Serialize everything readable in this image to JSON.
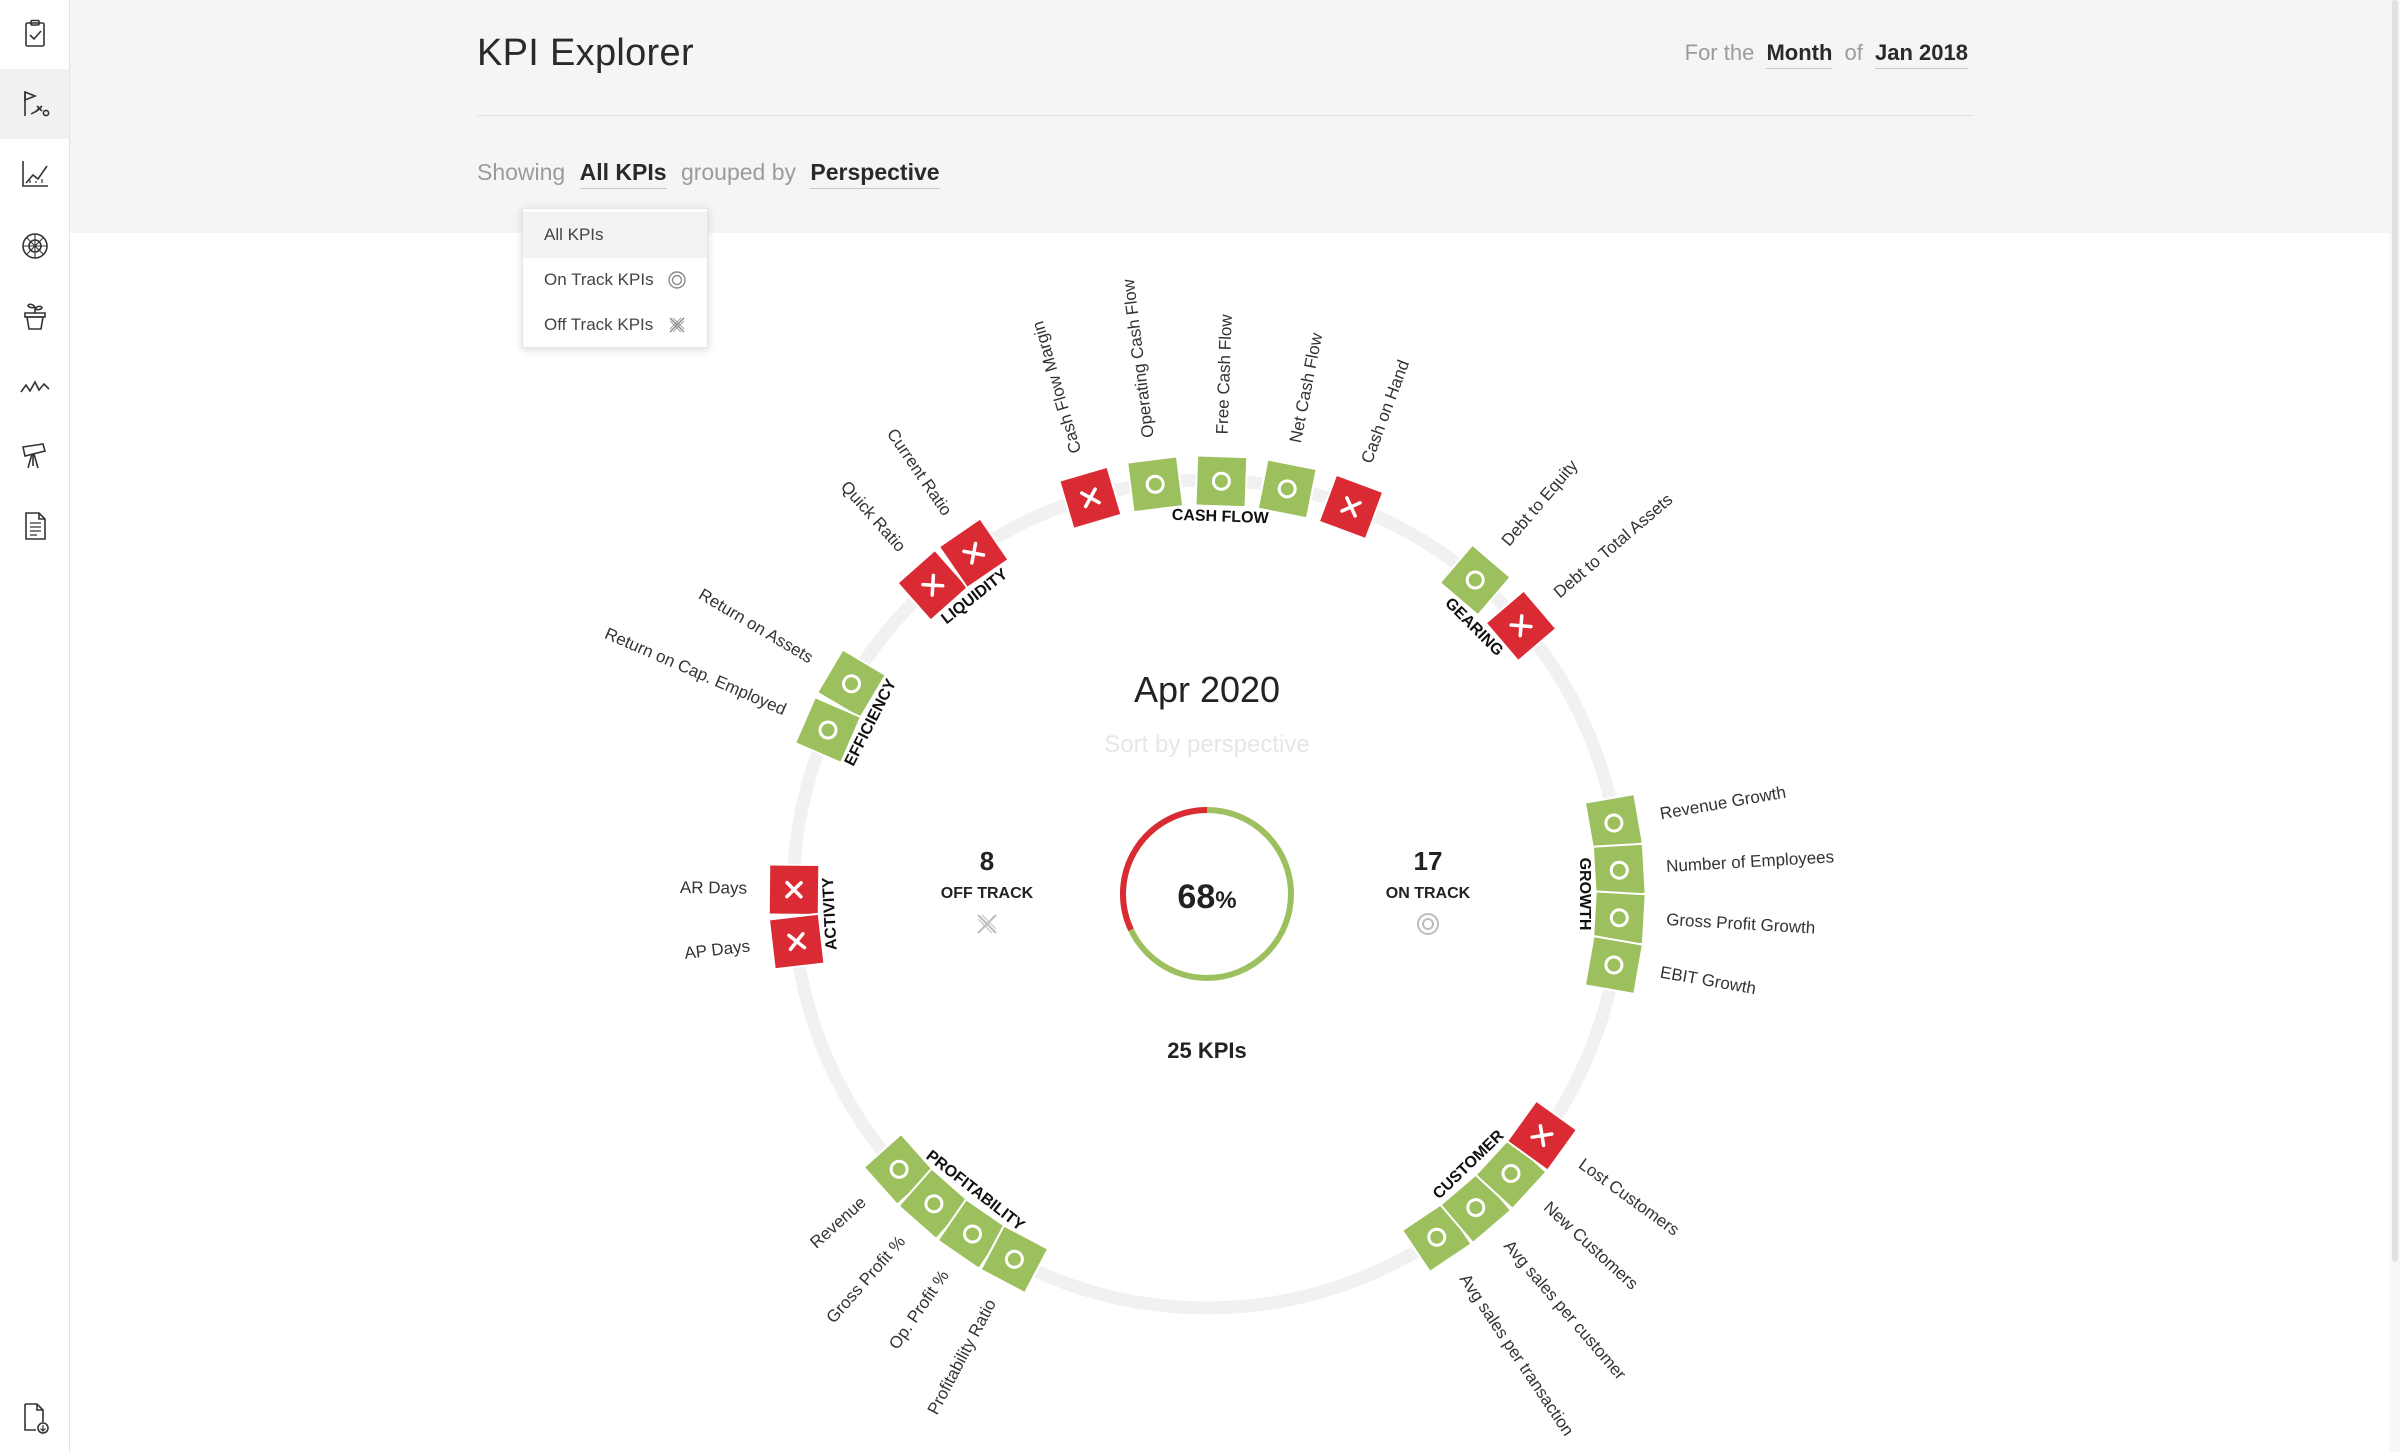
{
  "app": {
    "title": "KPI Explorer"
  },
  "period": {
    "prefix": "For the",
    "period_type": "Month",
    "of_label": "of",
    "date": "Jan 2018"
  },
  "filters": {
    "showing_label": "Showing",
    "kpi_filter": "All KPIs",
    "grouped_by_label": "grouped by",
    "group": "Perspective"
  },
  "dropdown": {
    "options": [
      {
        "label": "All KPIs",
        "icon": "",
        "selected": true
      },
      {
        "label": "On Track KPIs",
        "icon": "on-track-icon",
        "selected": false
      },
      {
        "label": "Off Track KPIs",
        "icon": "off-track-icon",
        "selected": false
      }
    ]
  },
  "summary": {
    "date": "Apr 2020",
    "sort_hint": "Sort by perspective",
    "percent": "68",
    "percent_value": 68,
    "percent_unit": "%",
    "total": "25 KPIs",
    "off_track_count": "8",
    "off_track_label": "OFF TRACK",
    "on_track_count": "17",
    "on_track_label": "ON TRACK"
  },
  "colors": {
    "on_track": "#9dc05e",
    "off_track": "#da2b35",
    "ring": "#f1f1f1",
    "text": "#222222"
  },
  "sidebar": {
    "icons": [
      "clipboard-check-icon",
      "strategy-icon",
      "line-chart-icon",
      "radar-icon",
      "plant-icon",
      "trend-icon",
      "telescope-icon",
      "report-icon",
      "export-icon"
    ],
    "active_index": 1
  },
  "groups": [
    {
      "name": "CASH FLOW",
      "kpis": [
        {
          "name": "Cash Flow Margin",
          "status": "off"
        },
        {
          "name": "Operating Cash Flow",
          "status": "on"
        },
        {
          "name": "Free Cash Flow",
          "status": "on"
        },
        {
          "name": "Net Cash Flow",
          "status": "on"
        },
        {
          "name": "Cash on Hand",
          "status": "off"
        }
      ]
    },
    {
      "name": "GEARING",
      "kpis": [
        {
          "name": "Debt to Equity",
          "status": "on"
        },
        {
          "name": "Debt to Total Assets",
          "status": "off"
        }
      ]
    },
    {
      "name": "GROWTH",
      "kpis": [
        {
          "name": "Revenue Growth",
          "status": "on"
        },
        {
          "name": "Number of Employees",
          "status": "on"
        },
        {
          "name": "Gross Profit Growth",
          "status": "on"
        },
        {
          "name": "EBIT Growth",
          "status": "on"
        }
      ]
    },
    {
      "name": "CUSTOMER",
      "kpis": [
        {
          "name": "Avg sales per transaction",
          "status": "on"
        },
        {
          "name": "Avg sales per customer",
          "status": "on"
        },
        {
          "name": "New Customers",
          "status": "on"
        },
        {
          "name": "Lost Customers",
          "status": "off"
        }
      ]
    },
    {
      "name": "PROFITABILITY",
      "kpis": [
        {
          "name": "Revenue",
          "status": "on"
        },
        {
          "name": "Gross Profit %",
          "status": "on"
        },
        {
          "name": "Op. Profit %",
          "status": "on"
        },
        {
          "name": "Profitability Ratio",
          "status": "on"
        }
      ]
    },
    {
      "name": "ACTIVITY",
      "kpis": [
        {
          "name": "AR Days",
          "status": "off"
        },
        {
          "name": "AP Days",
          "status": "off"
        }
      ]
    },
    {
      "name": "EFFICIENCY",
      "kpis": [
        {
          "name": "Return on Assets",
          "status": "on"
        },
        {
          "name": "Return on Cap. Employed",
          "status": "on"
        }
      ]
    },
    {
      "name": "LIQUIDITY",
      "kpis": [
        {
          "name": "Quick Ratio",
          "status": "off"
        },
        {
          "name": "Current Ratio",
          "status": "off"
        }
      ]
    }
  ]
}
